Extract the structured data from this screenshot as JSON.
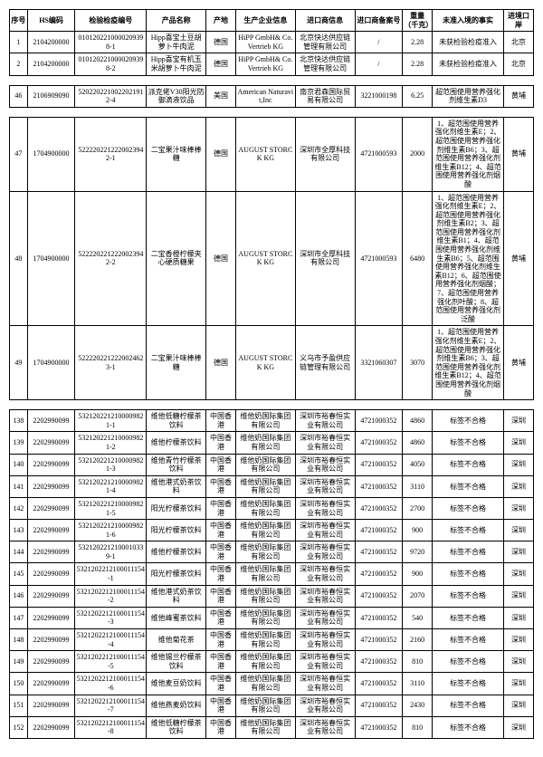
{
  "headers": {
    "seq": "序号",
    "hs": "HS编码",
    "insp": "检验检疫编号",
    "prod": "产品名称",
    "orig": "产地",
    "mfr": "生产企业信息",
    "imp": "进口商信息",
    "rec": "进口商备案号",
    "wt": "重量（千克）",
    "reason": "未准入境的事实",
    "port": "进境口岸"
  },
  "section1": [
    {
      "seq": "1",
      "hs": "2104200000",
      "insp": "0101202210000209398-1",
      "prod": "Hipp喜宝土豆胡萝卜牛肉泥",
      "orig": "德国",
      "mfr": "HiPP GmbH& Co. Vertrieb KG",
      "imp": "北京快达供应链管理有限公司",
      "rec": "/",
      "wt": "2.28",
      "reason": "未获检验检疫准入",
      "port": "北京"
    },
    {
      "seq": "2",
      "hs": "2104200000",
      "insp": "0101202210000209398-2",
      "prod": "Hipp喜宝有机玉米胡萝卜牛肉泥",
      "orig": "德国",
      "mfr": "HiPP GmbH& Co. Vertrieb KG",
      "imp": "北京快达供应链管理有限公司",
      "rec": "/",
      "wt": "2.28",
      "reason": "未获检验检疫准入",
      "port": "北京"
    }
  ],
  "section2": [
    {
      "seq": "46",
      "hs": "2106909090",
      "insp": "5202202210022021912-4",
      "prod": "派克佬V30阳光防御滴液饮品",
      "orig": "美国",
      "mfr": "American Naturavit,Inc",
      "imp": "南京君森国际贸易有限公司",
      "rec": "3221000198",
      "wt": "6.25",
      "reason": "超范围使用营养强化剂维生素D3",
      "port": "黄埔"
    }
  ],
  "section3": [
    {
      "seq": "47",
      "hs": "1704900000",
      "insp": "5222202212220023942-1",
      "prod": "二宝果汁味棒棒糖",
      "orig": "德国",
      "mfr": "AUGUST STORCK KG",
      "imp": "深圳市全厚科技有限公司",
      "rec": "4721000593",
      "wt": "2000",
      "reason": "1、超范围使用营养强化剂维生素E；2、超范围使用营养强化剂维生素B6；3、超范围使用营养强化剂维生素B12；4、超范围使用营养强化剂烟酸",
      "port": "黄埔"
    },
    {
      "seq": "48",
      "hs": "1704900000",
      "insp": "5222202212220023942-2",
      "prod": "二宝香橙柠檬夹心硬质糖果",
      "orig": "德国",
      "mfr": "AUGUST STORCK KG",
      "imp": "深圳市全厚科技有限公司",
      "rec": "4721000593",
      "wt": "6480",
      "reason": "1、超范围使用营养强化剂维生素E；2、超范围使用营养强化剂维生素B2；3、超范围使用营养强化剂维生素B1；4、超范围使用营养强化剂维生素B6；5、超范围使用营养强化剂维生素B12；6、超范围使用营养强化剂烟酸；7、超范围使用营养强化剂叶酸；8、超范围使用营养强化剂泛酸",
      "port": "黄埔"
    },
    {
      "seq": "49",
      "hs": "1704900000",
      "insp": "5222202212220024623-1",
      "prod": "二宝果汁味棒棒糖",
      "orig": "德国",
      "mfr": "AUGUST STORCK KG",
      "imp": "义乌市予盈供应链管理有限公司",
      "rec": "3321060307",
      "wt": "3070",
      "reason": "1、超范围使用营养强化剂维生素E；2、超范围使用营养强化剂维生素B6；3、超范围使用营养强化剂维生素B12；4、超范围使用营养强化剂烟酸",
      "port": "黄埔"
    }
  ],
  "section4": [
    {
      "seq": "138",
      "hs": "2202990099",
      "insp": "5321202212100009821-1",
      "prod": "维他低糖柠檬茶饮料",
      "orig": "中国香港",
      "mfr": "维他奶国际集团有限公司",
      "imp": "深圳市裕春恒实业有限公司",
      "rec": "4721000352",
      "wt": "4860",
      "reason": "标签不合格",
      "port": "深圳"
    },
    {
      "seq": "139",
      "hs": "2202990099",
      "insp": "5321202212100009821-2",
      "prod": "维他柠檬茶饮料",
      "orig": "中国香港",
      "mfr": "维他奶国际集团有限公司",
      "imp": "深圳市裕春恒实业有限公司",
      "rec": "4721000352",
      "wt": "4860",
      "reason": "标签不合格",
      "port": "深圳"
    },
    {
      "seq": "140",
      "hs": "2202990099",
      "insp": "5321202212100009821-3",
      "prod": "维他青竹柠檬茶饮料",
      "orig": "中国香港",
      "mfr": "维他奶国际集团有限公司",
      "imp": "深圳市裕春恒实业有限公司",
      "rec": "4721000352",
      "wt": "4050",
      "reason": "标签不合格",
      "port": "深圳"
    },
    {
      "seq": "141",
      "hs": "2202990099",
      "insp": "5321202212100009821-4",
      "prod": "维他港式奶茶饮料",
      "orig": "中国香港",
      "mfr": "维他奶国际集团有限公司",
      "imp": "深圳市裕春恒实业有限公司",
      "rec": "4721000352",
      "wt": "3110",
      "reason": "标签不合格",
      "port": "深圳"
    },
    {
      "seq": "142",
      "hs": "2202990099",
      "insp": "5321202212100009821-5",
      "prod": "阳光柠檬茶饮料",
      "orig": "中国香港",
      "mfr": "维他奶国际集团有限公司",
      "imp": "深圳市裕春恒实业有限公司",
      "rec": "4721000352",
      "wt": "2700",
      "reason": "标签不合格",
      "port": "深圳"
    },
    {
      "seq": "143",
      "hs": "2202990099",
      "insp": "5321202212100009821-6",
      "prod": "阳光柠檬茶饮料",
      "orig": "中国香港",
      "mfr": "维他奶国际集团有限公司",
      "imp": "深圳市裕春恒实业有限公司",
      "rec": "4721000352",
      "wt": "900",
      "reason": "标签不合格",
      "port": "深圳"
    },
    {
      "seq": "144",
      "hs": "2202990099",
      "insp": "5321202212100010339-1",
      "prod": "维他柠檬茶饮料",
      "orig": "中国香港",
      "mfr": "维他奶国际集团有限公司",
      "imp": "深圳市裕春恒实业有限公司",
      "rec": "4721000352",
      "wt": "9720",
      "reason": "标签不合格",
      "port": "深圳"
    },
    {
      "seq": "145",
      "hs": "2202990099",
      "insp": "5321202212100011154-1",
      "prod": "阳光柠檬茶饮料",
      "orig": "中国香港",
      "mfr": "维他奶国际集团有限公司",
      "imp": "深圳市裕春恒实业有限公司",
      "rec": "4721000352",
      "wt": "900",
      "reason": "标签不合格",
      "port": "深圳"
    },
    {
      "seq": "146",
      "hs": "2202990099",
      "insp": "5321202212100011154-2",
      "prod": "维他港式奶茶饮料",
      "orig": "中国香港",
      "mfr": "维他奶国际集团有限公司",
      "imp": "深圳市裕春恒实业有限公司",
      "rec": "4721000352",
      "wt": "2070",
      "reason": "标签不合格",
      "port": "深圳"
    },
    {
      "seq": "147",
      "hs": "2202990099",
      "insp": "5321202212100011154-3",
      "prod": "维他峰蜜茶饮料",
      "orig": "中国香港",
      "mfr": "维他奶国际集团有限公司",
      "imp": "深圳市裕春恒实业有限公司",
      "rec": "4721000352",
      "wt": "540",
      "reason": "标签不合格",
      "port": "深圳"
    },
    {
      "seq": "148",
      "hs": "2202990099",
      "insp": "5321202212100011154-4",
      "prod": "维他菊花茶",
      "orig": "中国香港",
      "mfr": "维他奶国际集团有限公司",
      "imp": "深圳市裕春恒实业有限公司",
      "rec": "4721000352",
      "wt": "2160",
      "reason": "标签不合格",
      "port": "深圳"
    },
    {
      "seq": "149",
      "hs": "2202990099",
      "insp": "5321202212100011154-5",
      "prod": "维他锡兰柠檬茶饮料",
      "orig": "中国香港",
      "mfr": "维他奶国际集团有限公司",
      "imp": "深圳市裕春恒实业有限公司",
      "rec": "4721000352",
      "wt": "810",
      "reason": "标签不合格",
      "port": "深圳"
    },
    {
      "seq": "150",
      "hs": "2202990099",
      "insp": "5321202212100011154-6",
      "prod": "维他麦豆奶饮料",
      "orig": "中国香港",
      "mfr": "维他奶国际集团有限公司",
      "imp": "深圳市裕春恒实业有限公司",
      "rec": "4721000352",
      "wt": "3110",
      "reason": "标签不合格",
      "port": "深圳"
    },
    {
      "seq": "151",
      "hs": "2202990099",
      "insp": "5321202212100011154-7",
      "prod": "维他燕麦奶饮料",
      "orig": "中国香港",
      "mfr": "维他奶国际集团有限公司",
      "imp": "深圳市裕春恒实业有限公司",
      "rec": "4721000352",
      "wt": "2430",
      "reason": "标签不合格",
      "port": "深圳"
    },
    {
      "seq": "152",
      "hs": "2202990099",
      "insp": "5321202212100011154-8",
      "prod": "维他低糖柠檬茶饮料",
      "orig": "中国香港",
      "mfr": "维他奶国际集团有限公司",
      "imp": "深圳市裕春恒实业有限公司",
      "rec": "4721000352",
      "wt": "810",
      "reason": "标签不合格",
      "port": "深圳"
    }
  ]
}
